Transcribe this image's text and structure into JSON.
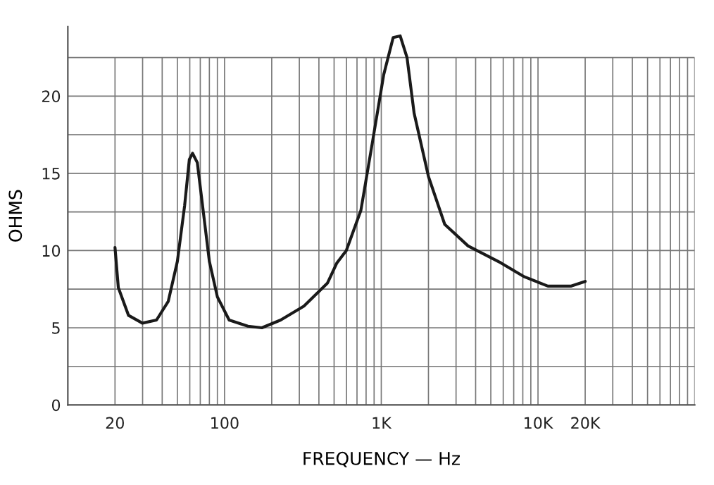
{
  "chart_data": {
    "type": "line",
    "xlabel": "FREQUENCY — Hz",
    "ylabel": "OHMS",
    "log": "x",
    "grid": true,
    "marker": "none",
    "line_style": "solid",
    "xlim": [
      10,
      100000
    ],
    "ylim": [
      0,
      24.5
    ],
    "xticks": [
      {
        "value": 20,
        "label": "20"
      },
      {
        "value": 30,
        "label": null
      },
      {
        "value": 40,
        "label": null
      },
      {
        "value": 50,
        "label": null
      },
      {
        "value": 60,
        "label": null
      },
      {
        "value": 70,
        "label": null
      },
      {
        "value": 80,
        "label": null
      },
      {
        "value": 90,
        "label": null
      },
      {
        "value": 100,
        "label": "100"
      },
      {
        "value": 200,
        "label": null
      },
      {
        "value": 300,
        "label": null
      },
      {
        "value": 400,
        "label": null
      },
      {
        "value": 500,
        "label": null
      },
      {
        "value": 600,
        "label": null
      },
      {
        "value": 700,
        "label": null
      },
      {
        "value": 800,
        "label": null
      },
      {
        "value": 900,
        "label": null
      },
      {
        "value": 1000,
        "label": "1K"
      },
      {
        "value": 2000,
        "label": null
      },
      {
        "value": 3000,
        "label": null
      },
      {
        "value": 4000,
        "label": null
      },
      {
        "value": 5000,
        "label": null
      },
      {
        "value": 6000,
        "label": null
      },
      {
        "value": 7000,
        "label": null
      },
      {
        "value": 8000,
        "label": null
      },
      {
        "value": 9000,
        "label": null
      },
      {
        "value": 10000,
        "label": "10K"
      },
      {
        "value": 20000,
        "label": "20K"
      },
      {
        "value": 30000,
        "label": null
      },
      {
        "value": 40000,
        "label": null
      },
      {
        "value": 50000,
        "label": null
      },
      {
        "value": 60000,
        "label": null
      },
      {
        "value": 70000,
        "label": null
      },
      {
        "value": 80000,
        "label": null
      },
      {
        "value": 90000,
        "label": null
      },
      {
        "value": 100000,
        "label": null
      }
    ],
    "yticks": [
      0,
      {
        "value": 2.5,
        "label": null
      },
      5,
      {
        "value": 7.5,
        "label": null
      },
      10,
      {
        "value": 12.5,
        "label": null
      },
      15,
      {
        "value": 17.5,
        "label": null
      },
      20,
      {
        "value": 22.5,
        "label": null
      }
    ],
    "series": [
      {
        "color": "#1a1a1a",
        "x": [
          20,
          21,
          24.4,
          29.9,
          36.8,
          43.7,
          50,
          55.6,
          59.6,
          62.5,
          67,
          71.8,
          80,
          90,
          107,
          141,
          173,
          228,
          321,
          454,
          521,
          598,
          741,
          871,
          1037,
          1191,
          1320,
          1460,
          1620,
          2000,
          2540,
          3580,
          5800,
          8190,
          11560,
          16300,
          20000
        ],
        "values": [
          10.2,
          7.6,
          5.8,
          5.3,
          5.5,
          6.7,
          9.3,
          12.9,
          15.9,
          16.3,
          15.7,
          13.2,
          9.3,
          7.0,
          5.5,
          5.1,
          5.0,
          5.5,
          6.4,
          7.9,
          9.2,
          10.0,
          12.6,
          16.8,
          21.4,
          23.8,
          23.9,
          22.5,
          18.9,
          14.8,
          11.7,
          10.3,
          9.2,
          8.3,
          7.7,
          7.7,
          8.0
        ]
      }
    ]
  }
}
